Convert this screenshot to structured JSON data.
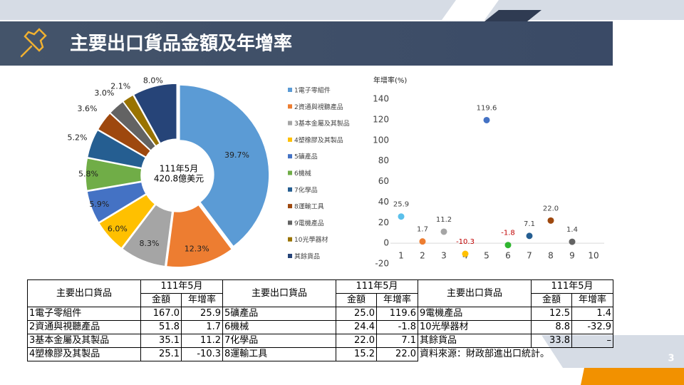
{
  "header": {
    "title": "主要出口貨品金額及年增率"
  },
  "chart_data": [
    {
      "type": "pie",
      "center_label": [
        "111年5月",
        "420.8億美元"
      ],
      "categories": [
        "1電子零組件",
        "2資通與視聽產品",
        "3基本金屬及其製品",
        "4塑橡膠及其製品",
        "5礦產品",
        "6機械",
        "7化學品",
        "8運輸工具",
        "9電機產品",
        "10光學器材",
        "其餘貨品"
      ],
      "values": [
        39.7,
        12.3,
        8.3,
        6.0,
        5.9,
        5.8,
        5.2,
        3.6,
        3.0,
        2.1,
        8.0
      ],
      "value_labels": [
        "39.7%",
        "12.3%",
        "8.3%",
        "6.0%",
        "5.9%",
        "5.8%",
        "5.2%",
        "3.6%",
        "3.0%",
        "2.1%",
        "8.0%"
      ],
      "colors": [
        "#5b9bd5",
        "#ed7d31",
        "#a5a5a5",
        "#ffc000",
        "#4472c4",
        "#70ad47",
        "#255e91",
        "#9e480e",
        "#636363",
        "#997300",
        "#264478"
      ]
    },
    {
      "type": "scatter",
      "ylabel": "年增率(%)",
      "x": [
        1,
        2,
        3,
        4,
        5,
        6,
        7,
        8,
        9
      ],
      "values": [
        25.9,
        1.7,
        11.2,
        -10.3,
        119.6,
        -1.8,
        7.1,
        22.0,
        1.4
      ],
      "value_labels": [
        "25.9",
        "1.7",
        "11.2",
        "-10.3",
        "119.6",
        "-1.8",
        "7.1",
        "22.0",
        "1.4"
      ],
      "colors": [
        "#5bc0eb",
        "#ed7d31",
        "#a5a5a5",
        "#ffc000",
        "#4472c4",
        "#2fb52f",
        "#255e91",
        "#9e480e",
        "#636363"
      ],
      "label_color": "#404040",
      "negative_label_color": "#c00000",
      "xlim": [
        0.5,
        10.5
      ],
      "xticks": [
        1,
        2,
        3,
        4,
        5,
        6,
        7,
        8,
        9,
        10
      ],
      "ylim": [
        -20,
        140
      ],
      "yticks": [
        -20,
        0,
        20,
        40,
        60,
        80,
        100,
        120,
        140
      ]
    }
  ],
  "table": {
    "groups": [
      {
        "header": "主要出口貨品",
        "period": "111年5月",
        "cols": [
          "金額",
          "年增率"
        ],
        "rows": [
          [
            "1電子零組件",
            "167.0",
            "25.9"
          ],
          [
            "2資通與視聽產品",
            "51.8",
            "1.7"
          ],
          [
            "3基本金屬及其製品",
            "35.1",
            "11.2"
          ],
          [
            "4塑橡膠及其製品",
            "25.1",
            "-10.3"
          ]
        ]
      },
      {
        "header": "主要出口貨品",
        "period": "111年5月",
        "cols": [
          "金額",
          "年增率"
        ],
        "rows": [
          [
            "5礦產品",
            "25.0",
            "119.6"
          ],
          [
            "6機械",
            "24.4",
            "-1.8"
          ],
          [
            "7化學品",
            "22.0",
            "7.1"
          ],
          [
            "8運輸工具",
            "15.2",
            "22.0"
          ]
        ]
      },
      {
        "header": "主要出口貨品",
        "period": "111年5月",
        "cols": [
          "金額",
          "年增率"
        ],
        "rows": [
          [
            "9電機產品",
            "12.5",
            "1.4"
          ],
          [
            "10光學器材",
            "8.8",
            "-32.9"
          ],
          [
            "其餘貨品",
            "33.8",
            "–"
          ]
        ]
      }
    ],
    "note": "資料來源：財政部進出口統計。"
  },
  "page_number": "3"
}
